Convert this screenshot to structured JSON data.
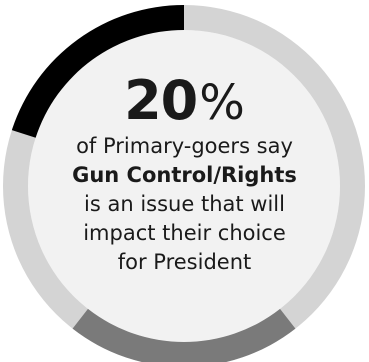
{
  "chart_data": {
    "type": "pie",
    "value": 20,
    "unit": "%",
    "slices": [
      {
        "value": 20,
        "color": "#000000"
      },
      {
        "value": 80,
        "color": "#d4d4d4"
      }
    ],
    "base_arc_color": "#7a7a7a",
    "inner_fill_color": "#f2f2f2",
    "text": {
      "line1": "of Primary-goers say",
      "line2": "Gun Control/Rights",
      "line3": "is an issue that will",
      "line4": "impact their choice",
      "line5": "for President"
    }
  }
}
